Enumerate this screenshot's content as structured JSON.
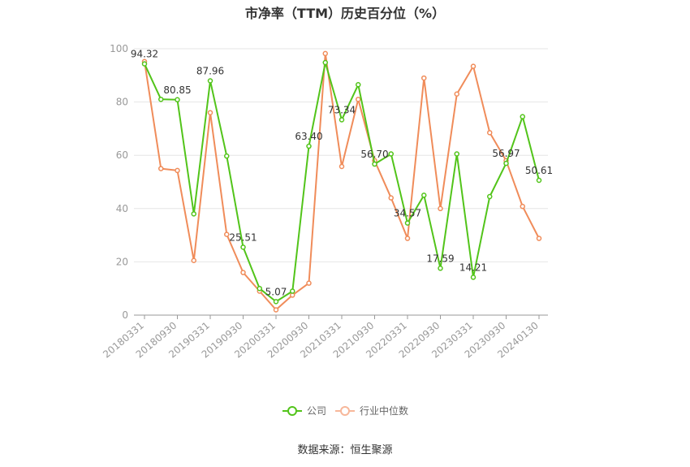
{
  "chart_data": {
    "type": "line",
    "title": "市净率（TTM）历史百分位（%）",
    "ylim": [
      0,
      100
    ],
    "yticks": [
      0,
      20,
      40,
      60,
      80,
      100
    ],
    "grid": true,
    "legend_position": "bottom",
    "x_tick_labels": [
      "20180331",
      "20180930",
      "20190331",
      "20190930",
      "20200331",
      "20200930",
      "20210331",
      "20210930",
      "20220331",
      "20220930",
      "20230331",
      "20230930",
      "20240130"
    ],
    "series": [
      {
        "name": "公司",
        "color": "#52c41a",
        "values": [
          94.32,
          81.0,
          80.85,
          38.0,
          87.96,
          59.7,
          25.51,
          10.0,
          5.07,
          9.0,
          63.4,
          94.8,
          73.34,
          86.5,
          56.7,
          60.5,
          34.57,
          45.0,
          17.59,
          60.5,
          14.21,
          44.5,
          56.97,
          74.5,
          50.61
        ]
      },
      {
        "name": "行业中位数",
        "color": "#f08c5a",
        "values": [
          95.2,
          55.0,
          54.3,
          20.5,
          76.0,
          30.3,
          16.0,
          9.0,
          2.0,
          7.5,
          12.0,
          98.2,
          55.8,
          81.0,
          58.0,
          44.0,
          28.8,
          89.0,
          40.0,
          83.0,
          93.4,
          68.5,
          58.0,
          40.8,
          28.8
        ]
      }
    ],
    "data_labels": [
      {
        "index": 0,
        "text": "94.32"
      },
      {
        "index": 2,
        "text": "80.85"
      },
      {
        "index": 4,
        "text": "87.96"
      },
      {
        "index": 6,
        "text": "25.51"
      },
      {
        "index": 8,
        "text": "5.07"
      },
      {
        "index": 10,
        "text": "63.40"
      },
      {
        "index": 12,
        "text": "73.34"
      },
      {
        "index": 14,
        "text": "56.70"
      },
      {
        "index": 16,
        "text": "34.57"
      },
      {
        "index": 18,
        "text": "17.59"
      },
      {
        "index": 20,
        "text": "14.21"
      },
      {
        "index": 22,
        "text": "56.97"
      },
      {
        "index": 24,
        "text": "50.61"
      }
    ]
  },
  "legend": {
    "company": "公司",
    "industry": "行业中位数"
  },
  "source": "数据来源：恒生聚源"
}
